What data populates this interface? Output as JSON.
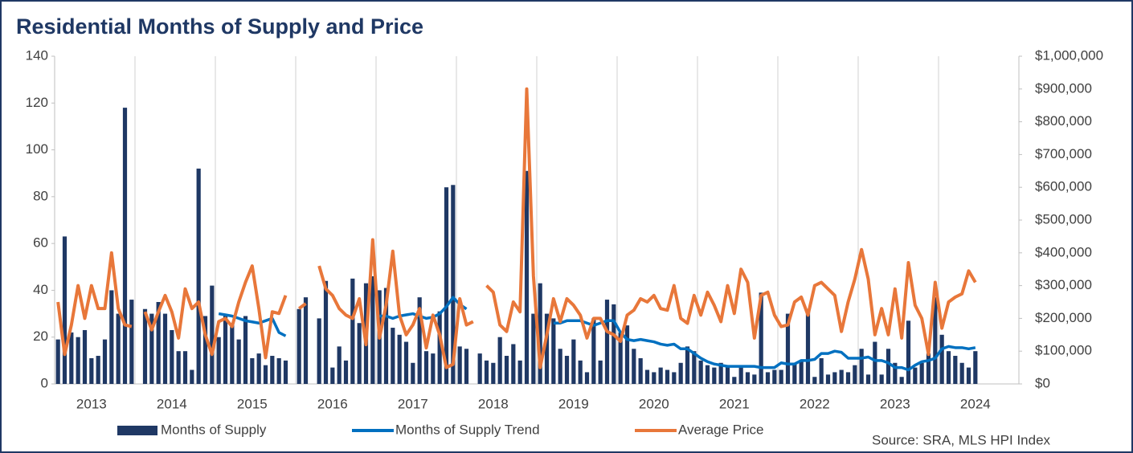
{
  "chart_data": {
    "type": "combo",
    "title": "Residential Months of Supply and Price",
    "source": "Source: SRA, MLS HPI Index",
    "categories": [
      null,
      null,
      null,
      null,
      null,
      "2013",
      null,
      null,
      null,
      null,
      null,
      null,
      null,
      null,
      null,
      null,
      null,
      "2014",
      null,
      null,
      null,
      null,
      null,
      null,
      null,
      null,
      null,
      null,
      null,
      "2015",
      null,
      null,
      null,
      null,
      null,
      null,
      null,
      null,
      null,
      null,
      null,
      "2016",
      null,
      null,
      null,
      null,
      null,
      null,
      null,
      null,
      null,
      null,
      null,
      "2017",
      null,
      null,
      null,
      null,
      null,
      null,
      null,
      null,
      null,
      null,
      null,
      "2018",
      null,
      null,
      null,
      null,
      null,
      null,
      null,
      null,
      null,
      null,
      null,
      "2019",
      null,
      null,
      null,
      null,
      null,
      null,
      null,
      null,
      null,
      null,
      null,
      "2020",
      null,
      null,
      null,
      null,
      null,
      null,
      null,
      null,
      null,
      null,
      null,
      "2021",
      null,
      null,
      null,
      null,
      null,
      null,
      null,
      null,
      null,
      null,
      null,
      "2022",
      null,
      null,
      null,
      null,
      null,
      null,
      null,
      null,
      null,
      null,
      null,
      "2023",
      null,
      null,
      null,
      null,
      null,
      null,
      null,
      null,
      null,
      null,
      null,
      "2024",
      null,
      null,
      null,
      null,
      null,
      null
    ],
    "series": [
      {
        "name": "Months of Supply",
        "type": "bar",
        "color": "#1f3864",
        "values": [
          19,
          63,
          22,
          20,
          23,
          11,
          12,
          19,
          40,
          30,
          118,
          36,
          null,
          32,
          30,
          35,
          30,
          23,
          14,
          14,
          6,
          92,
          29,
          42,
          20,
          29,
          26,
          19,
          29,
          11,
          13,
          8,
          12,
          11,
          10,
          null,
          32,
          37,
          null,
          28,
          44,
          7,
          16,
          10,
          45,
          26,
          43,
          46,
          40,
          41,
          24,
          21,
          18,
          9,
          37,
          14,
          13,
          31,
          84,
          85,
          16,
          15,
          null,
          13,
          10,
          9,
          20,
          12,
          17,
          10,
          91,
          30,
          43,
          30,
          28,
          15,
          12,
          19,
          10,
          5,
          28,
          10,
          36,
          34,
          22,
          25,
          15,
          11,
          6,
          5,
          7,
          6,
          5,
          9,
          16,
          14,
          10,
          8,
          7,
          9,
          8,
          3,
          7,
          5,
          4,
          39,
          5,
          6,
          6,
          30,
          9,
          10,
          32,
          3,
          11,
          4,
          5,
          6,
          5,
          8,
          15,
          4,
          18,
          4,
          15,
          9,
          3,
          27,
          7,
          9,
          13,
          37,
          21,
          14,
          12,
          9,
          7,
          14,
          null,
          null,
          null,
          null,
          null,
          null
        ]
      },
      {
        "name": "Months of Supply Trend",
        "type": "line",
        "color": "#0070c0",
        "values": [
          null,
          null,
          null,
          null,
          null,
          null,
          null,
          null,
          null,
          null,
          null,
          null,
          null,
          null,
          null,
          null,
          null,
          null,
          null,
          null,
          null,
          null,
          null,
          null,
          30,
          29.5,
          29,
          28,
          27,
          26.5,
          26,
          27,
          28,
          22,
          20.5,
          null,
          null,
          null,
          null,
          null,
          null,
          null,
          null,
          null,
          null,
          null,
          null,
          null,
          29,
          29,
          28,
          29,
          29.5,
          30,
          29,
          28,
          28.5,
          30,
          33,
          37,
          34,
          32,
          null,
          null,
          null,
          null,
          null,
          null,
          null,
          null,
          null,
          null,
          null,
          null,
          26,
          26,
          27,
          27,
          27,
          26,
          25,
          26,
          27,
          27,
          22,
          19,
          18.5,
          19,
          18.5,
          18,
          17,
          16.5,
          17,
          15,
          15,
          13,
          11,
          9.5,
          8.5,
          8,
          7.5,
          7.5,
          7.5,
          7.5,
          7.5,
          7,
          7,
          7,
          9,
          8.5,
          8.5,
          10,
          10,
          10.5,
          13,
          13,
          14,
          13.5,
          11,
          11,
          11,
          11.5,
          10,
          10,
          9,
          7,
          7,
          6,
          8,
          9.5,
          10,
          11,
          15,
          16,
          15.5,
          15.5,
          15,
          15.5,
          null,
          null,
          null,
          null,
          null,
          null
        ]
      },
      {
        "name": "Average Price",
        "type": "line",
        "axis": "y2",
        "color": "#e8773a",
        "values": [
          250000,
          90000,
          180000,
          300000,
          200000,
          300000,
          230000,
          230000,
          400000,
          230000,
          180000,
          175000,
          null,
          220000,
          165000,
          220000,
          270000,
          220000,
          140000,
          290000,
          230000,
          250000,
          150000,
          90000,
          190000,
          200000,
          175000,
          250000,
          310000,
          360000,
          230000,
          80000,
          220000,
          215000,
          270000,
          null,
          230000,
          245000,
          null,
          360000,
          290000,
          270000,
          230000,
          210000,
          200000,
          260000,
          120000,
          440000,
          140000,
          240000,
          405000,
          210000,
          150000,
          180000,
          230000,
          110000,
          210000,
          150000,
          50000,
          60000,
          260000,
          180000,
          190000,
          null,
          300000,
          280000,
          180000,
          160000,
          250000,
          220000,
          900000,
          330000,
          50000,
          150000,
          260000,
          190000,
          260000,
          240000,
          210000,
          140000,
          200000,
          200000,
          160000,
          150000,
          130000,
          210000,
          225000,
          260000,
          250000,
          270000,
          230000,
          225000,
          300000,
          200000,
          185000,
          270000,
          210000,
          280000,
          240000,
          190000,
          300000,
          215000,
          350000,
          310000,
          140000,
          270000,
          280000,
          210000,
          175000,
          180000,
          250000,
          265000,
          210000,
          300000,
          310000,
          290000,
          270000,
          160000,
          250000,
          320000,
          410000,
          320000,
          150000,
          230000,
          150000,
          290000,
          140000,
          370000,
          240000,
          200000,
          90000,
          310000,
          170000,
          250000,
          265000,
          275000,
          345000,
          310000,
          null,
          null,
          null,
          null,
          null,
          null
        ]
      }
    ],
    "ylim": [
      0,
      140
    ],
    "yticks": [
      0,
      20,
      40,
      60,
      80,
      100,
      120,
      140
    ],
    "y2lim": [
      0,
      1000000
    ],
    "y2ticks": [
      {
        "value": 0,
        "label": "$0"
      },
      {
        "value": 100000,
        "label": "$100,000"
      },
      {
        "value": 200000,
        "label": "$200,000"
      },
      {
        "value": 300000,
        "label": "$300,000"
      },
      {
        "value": 400000,
        "label": "$400,000"
      },
      {
        "value": 500000,
        "label": "$500,000"
      },
      {
        "value": 600000,
        "label": "$600,000"
      },
      {
        "value": 700000,
        "label": "$700,000"
      },
      {
        "value": 800000,
        "label": "$800,000"
      },
      {
        "value": 900000,
        "label": "$900,000"
      },
      {
        "value": 1000000,
        "label": "$1,000,000"
      }
    ]
  }
}
